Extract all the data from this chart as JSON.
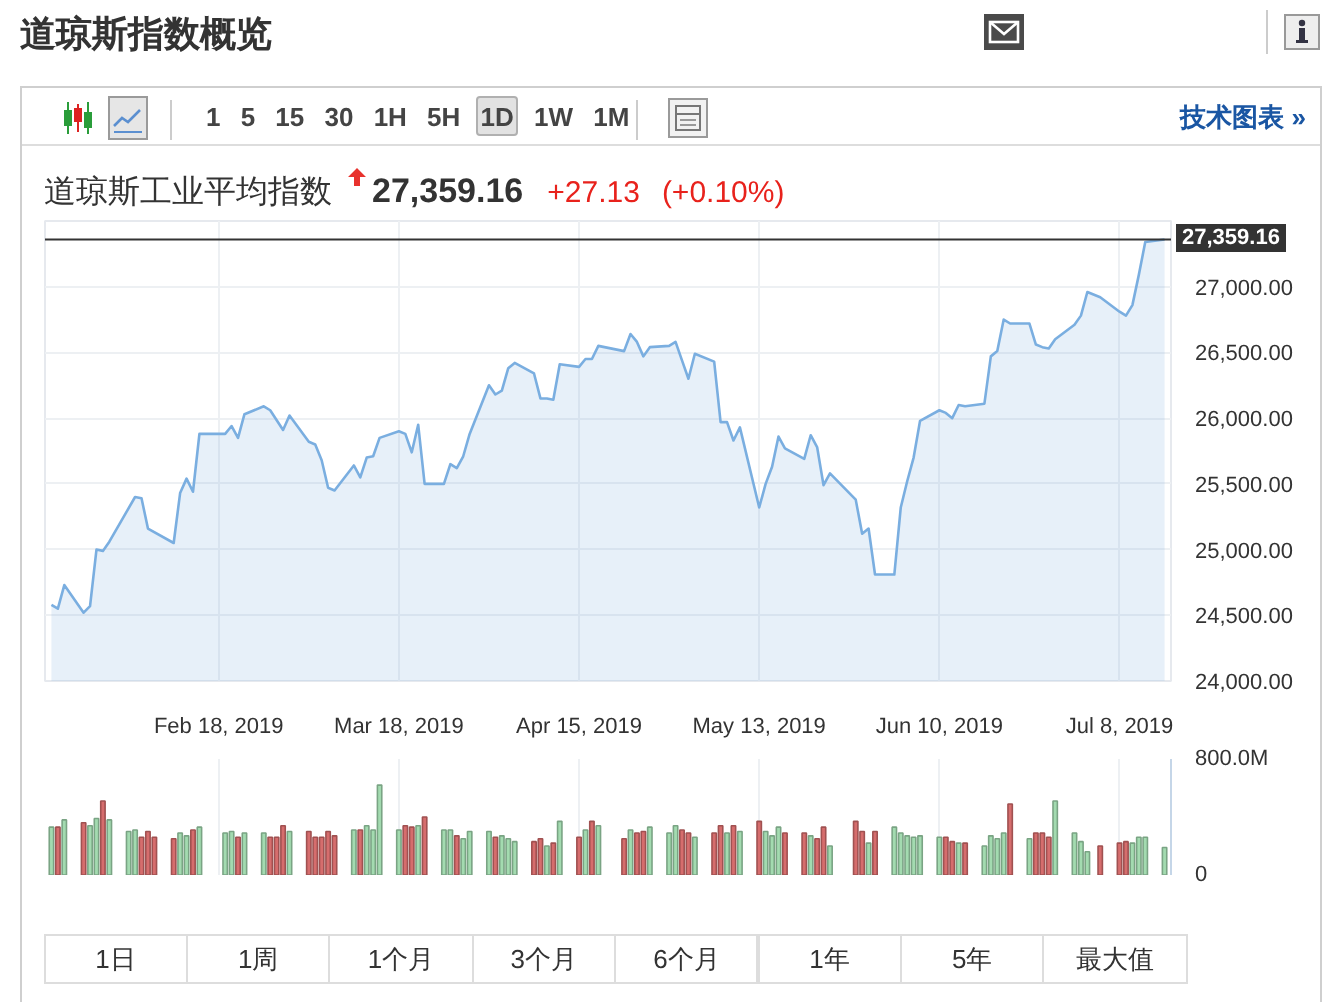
{
  "chart_data": [
    {
      "type": "area",
      "title": "道琼斯指数概览",
      "subtitle": "道琼斯工业平均指数",
      "annotations": [
        "27,359.16",
        "+27.13",
        "(+0.10%)",
        "1 5 15 30 1H 5H 1D 1W 1M",
        "技术图表 »"
      ],
      "color": "#7aaee0",
      "x": [
        "2019-01-23",
        "2019-01-24",
        "2019-01-25",
        "2019-01-28",
        "2019-01-29",
        "2019-01-30",
        "2019-01-31",
        "2019-02-01",
        "2019-02-05",
        "2019-02-06",
        "2019-02-07",
        "2019-02-11",
        "2019-02-12",
        "2019-02-13",
        "2019-02-14",
        "2019-02-15",
        "2019-02-19",
        "2019-02-20",
        "2019-02-21",
        "2019-02-22",
        "2019-02-25",
        "2019-02-26",
        "2019-02-28",
        "2019-03-01",
        "2019-03-04",
        "2019-03-05",
        "2019-03-06",
        "2019-03-07",
        "2019-03-08",
        "2019-03-11",
        "2019-03-12",
        "2019-03-13",
        "2019-03-14",
        "2019-03-15",
        "2019-03-18",
        "2019-03-19",
        "2019-03-20",
        "2019-03-21",
        "2019-03-22",
        "2019-03-25",
        "2019-03-26",
        "2019-03-27",
        "2019-03-28",
        "2019-03-29",
        "2019-04-01",
        "2019-04-02",
        "2019-04-03",
        "2019-04-04",
        "2019-04-05",
        "2019-04-08",
        "2019-04-09",
        "2019-04-10",
        "2019-04-11",
        "2019-04-12",
        "2019-04-15",
        "2019-04-16",
        "2019-04-17",
        "2019-04-18",
        "2019-04-22",
        "2019-04-23",
        "2019-04-24",
        "2019-04-25",
        "2019-04-26",
        "2019-04-29",
        "2019-04-30",
        "2019-05-01",
        "2019-05-02",
        "2019-05-03",
        "2019-05-06",
        "2019-05-07",
        "2019-05-08",
        "2019-05-09",
        "2019-05-10",
        "2019-05-13",
        "2019-05-14",
        "2019-05-15",
        "2019-05-16",
        "2019-05-17",
        "2019-05-20",
        "2019-05-21",
        "2019-05-22",
        "2019-05-23",
        "2019-05-24",
        "2019-05-28",
        "2019-05-29",
        "2019-05-30",
        "2019-05-31",
        "2019-06-03",
        "2019-06-04",
        "2019-06-05",
        "2019-06-06",
        "2019-06-07",
        "2019-06-10",
        "2019-06-11",
        "2019-06-12",
        "2019-06-13",
        "2019-06-14",
        "2019-06-17",
        "2019-06-18",
        "2019-06-19",
        "2019-06-20",
        "2019-06-21",
        "2019-06-24",
        "2019-06-25",
        "2019-06-26",
        "2019-06-27",
        "2019-06-28",
        "2019-07-01",
        "2019-07-02",
        "2019-07-03",
        "2019-07-05",
        "2019-07-08",
        "2019-07-09",
        "2019-07-10",
        "2019-07-11",
        "2019-07-12",
        "2019-07-15"
      ],
      "values": [
        24580,
        24550,
        24730,
        24520,
        24570,
        25000,
        24990,
        25060,
        25400,
        25390,
        25160,
        25050,
        25430,
        25540,
        25440,
        25880,
        25880,
        25940,
        25850,
        26030,
        26090,
        26060,
        25910,
        26020,
        25820,
        25800,
        25680,
        25470,
        25450,
        25640,
        25550,
        25700,
        25710,
        25850,
        25900,
        25880,
        25740,
        25950,
        25500,
        25500,
        25650,
        25620,
        25710,
        25880,
        26250,
        26180,
        26210,
        26380,
        26420,
        26340,
        26150,
        26150,
        26140,
        26410,
        26390,
        26450,
        26450,
        26550,
        26510,
        26640,
        26580,
        26470,
        26540,
        26550,
        26580,
        26440,
        26300,
        26490,
        26430,
        25970,
        25970,
        25830,
        25930,
        25320,
        25500,
        25630,
        25860,
        25770,
        25690,
        25870,
        25780,
        25490,
        25580,
        25380,
        25120,
        25160,
        24810,
        24810,
        25320,
        25520,
        25700,
        25980,
        26060,
        26040,
        26000,
        26100,
        26090,
        26110,
        26470,
        26510,
        26750,
        26720,
        26720,
        26560,
        26540,
        26530,
        26600,
        26710,
        26780,
        26960,
        26920,
        26810,
        26780,
        26860,
        27090,
        27340,
        27359.16
      ],
      "xlim": [
        "2019-01-22",
        "2019-07-16"
      ],
      "xticks": [
        {
          "value": "2019-02-18",
          "label": "Feb 18, 2019"
        },
        {
          "value": "2019-03-18",
          "label": "Mar 18, 2019"
        },
        {
          "value": "2019-04-15",
          "label": "Apr 15, 2019"
        },
        {
          "value": "2019-05-13",
          "label": "May 13, 2019"
        },
        {
          "value": "2019-06-10",
          "label": "Jun 10, 2019"
        },
        {
          "value": "2019-07-08",
          "label": "Jul 8, 2019"
        }
      ],
      "ylim": [
        24000,
        27500
      ],
      "yticks": [
        {
          "value": 24000,
          "label": "24,000.00"
        },
        {
          "value": 24500,
          "label": "24,500.00"
        },
        {
          "value": 25000,
          "label": "25,000.00"
        },
        {
          "value": 25500,
          "label": "25,500.00"
        },
        {
          "value": 26000,
          "label": "26,000.00"
        },
        {
          "value": 26500,
          "label": "26,500.00"
        },
        {
          "value": 27000,
          "label": "27,000.00"
        }
      ],
      "grid": true,
      "ref_lines": [
        {
          "axis": "y",
          "value": 27359.16,
          "label": "27,359.16",
          "color": "#333333"
        }
      ]
    },
    {
      "type": "bar",
      "annotations": [
        "1日",
        "1周",
        "1个月",
        "3个月",
        "6个月",
        "1年",
        "5年",
        "最大值"
      ],
      "x": [
        "2019-01-23",
        "2019-01-24",
        "2019-01-25",
        "2019-01-28",
        "2019-01-29",
        "2019-01-30",
        "2019-01-31",
        "2019-02-01",
        "2019-02-04",
        "2019-02-05",
        "2019-02-06",
        "2019-02-07",
        "2019-02-08",
        "2019-02-11",
        "2019-02-12",
        "2019-02-13",
        "2019-02-14",
        "2019-02-15",
        "2019-02-19",
        "2019-02-20",
        "2019-02-21",
        "2019-02-22",
        "2019-02-25",
        "2019-02-26",
        "2019-02-27",
        "2019-02-28",
        "2019-03-01",
        "2019-03-04",
        "2019-03-05",
        "2019-03-06",
        "2019-03-07",
        "2019-03-08",
        "2019-03-11",
        "2019-03-12",
        "2019-03-13",
        "2019-03-14",
        "2019-03-15",
        "2019-03-18",
        "2019-03-19",
        "2019-03-20",
        "2019-03-21",
        "2019-03-22",
        "2019-03-25",
        "2019-03-26",
        "2019-03-27",
        "2019-03-28",
        "2019-03-29",
        "2019-04-01",
        "2019-04-02",
        "2019-04-03",
        "2019-04-04",
        "2019-04-05",
        "2019-04-08",
        "2019-04-09",
        "2019-04-10",
        "2019-04-11",
        "2019-04-12",
        "2019-04-15",
        "2019-04-16",
        "2019-04-17",
        "2019-04-18",
        "2019-04-22",
        "2019-04-23",
        "2019-04-24",
        "2019-04-25",
        "2019-04-26",
        "2019-04-29",
        "2019-04-30",
        "2019-05-01",
        "2019-05-02",
        "2019-05-03",
        "2019-05-06",
        "2019-05-07",
        "2019-05-08",
        "2019-05-09",
        "2019-05-10",
        "2019-05-13",
        "2019-05-14",
        "2019-05-15",
        "2019-05-16",
        "2019-05-17",
        "2019-05-20",
        "2019-05-21",
        "2019-05-22",
        "2019-05-23",
        "2019-05-24",
        "2019-05-28",
        "2019-05-29",
        "2019-05-30",
        "2019-05-31",
        "2019-06-03",
        "2019-06-04",
        "2019-06-05",
        "2019-06-06",
        "2019-06-07",
        "2019-06-10",
        "2019-06-11",
        "2019-06-12",
        "2019-06-13",
        "2019-06-14",
        "2019-06-17",
        "2019-06-18",
        "2019-06-19",
        "2019-06-20",
        "2019-06-21",
        "2019-06-24",
        "2019-06-25",
        "2019-06-26",
        "2019-06-27",
        "2019-06-28",
        "2019-07-01",
        "2019-07-02",
        "2019-07-03",
        "2019-07-05",
        "2019-07-08",
        "2019-07-09",
        "2019-07-10",
        "2019-07-11",
        "2019-07-12",
        "2019-07-15"
      ],
      "values": [
        330,
        330,
        380,
        360,
        340,
        390,
        510,
        380,
        300,
        310,
        260,
        300,
        260,
        250,
        290,
        270,
        310,
        330,
        290,
        300,
        260,
        290,
        290,
        260,
        260,
        340,
        300,
        300,
        260,
        260,
        300,
        270,
        310,
        310,
        340,
        310,
        620,
        310,
        340,
        330,
        340,
        400,
        310,
        310,
        270,
        250,
        300,
        300,
        260,
        270,
        250,
        230,
        230,
        250,
        200,
        220,
        370,
        260,
        310,
        370,
        340,
        250,
        310,
        290,
        300,
        330,
        290,
        340,
        310,
        290,
        260,
        290,
        340,
        290,
        340,
        300,
        370,
        300,
        270,
        330,
        290,
        290,
        270,
        250,
        330,
        200,
        370,
        300,
        220,
        300,
        330,
        290,
        270,
        260,
        270,
        260,
        260,
        230,
        220,
        220,
        200,
        270,
        250,
        290,
        490,
        250,
        290,
        290,
        260,
        510,
        290,
        230,
        160,
        200,
        220,
        230,
        220,
        260,
        260,
        190
      ],
      "colors": [
        "#a3dbb0",
        "#d66d6d",
        "#a3dbb0",
        "#d66d6d",
        "#a3dbb0",
        "#a3dbb0",
        "#d66d6d",
        "#a3dbb0",
        "#a3dbb0",
        "#a3dbb0",
        "#d66d6d",
        "#d66d6d",
        "#d66d6d",
        "#d66d6d",
        "#a3dbb0",
        "#a3dbb0",
        "#d66d6d",
        "#a3dbb0",
        "#a3dbb0",
        "#a3dbb0",
        "#d66d6d",
        "#a3dbb0",
        "#a3dbb0",
        "#d66d6d",
        "#d66d6d",
        "#d66d6d",
        "#a3dbb0",
        "#d66d6d",
        "#d66d6d",
        "#d66d6d",
        "#d66d6d",
        "#d66d6d",
        "#a3dbb0",
        "#d66d6d",
        "#a3dbb0",
        "#a3dbb0",
        "#a3dbb0",
        "#a3dbb0",
        "#d66d6d",
        "#d66d6d",
        "#a3dbb0",
        "#d66d6d",
        "#a3dbb0",
        "#a3dbb0",
        "#d66d6d",
        "#a3dbb0",
        "#a3dbb0",
        "#a3dbb0",
        "#d66d6d",
        "#a3dbb0",
        "#a3dbb0",
        "#a3dbb0",
        "#d66d6d",
        "#d66d6d",
        "#a3dbb0",
        "#d66d6d",
        "#a3dbb0",
        "#d66d6d",
        "#a3dbb0",
        "#d66d6d",
        "#a3dbb0",
        "#d66d6d",
        "#a3dbb0",
        "#d66d6d",
        "#d66d6d",
        "#a3dbb0",
        "#a3dbb0",
        "#a3dbb0",
        "#d66d6d",
        "#d66d6d",
        "#a3dbb0",
        "#d66d6d",
        "#d66d6d",
        "#a3dbb0",
        "#d66d6d",
        "#a3dbb0",
        "#d66d6d",
        "#a3dbb0",
        "#a3dbb0",
        "#a3dbb0",
        "#d66d6d",
        "#d66d6d",
        "#a3dbb0",
        "#d66d6d",
        "#d66d6d",
        "#a3dbb0",
        "#d66d6d",
        "#d66d6d",
        "#a3dbb0",
        "#d66d6d",
        "#a3dbb0",
        "#a3dbb0",
        "#a3dbb0",
        "#a3dbb0",
        "#a3dbb0",
        "#a3dbb0",
        "#d66d6d",
        "#d66d6d",
        "#a3dbb0",
        "#d66d6d",
        "#a3dbb0",
        "#a3dbb0",
        "#a3dbb0",
        "#a3dbb0",
        "#d66d6d",
        "#a3dbb0",
        "#d66d6d",
        "#d66d6d",
        "#d66d6d",
        "#a3dbb0",
        "#a3dbb0",
        "#a3dbb0",
        "#a3dbb0",
        "#d66d6d",
        "#d66d6d",
        "#d66d6d",
        "#a3dbb0",
        "#a3dbb0",
        "#a3dbb0",
        "#a3dbb0"
      ],
      "xlim": [
        "2019-01-22",
        "2019-07-16"
      ],
      "xticks": [
        {
          "value": "2019-02-18",
          "label": null
        },
        {
          "value": "2019-03-18",
          "label": null
        },
        {
          "value": "2019-04-15",
          "label": null
        },
        {
          "value": "2019-05-13",
          "label": null
        },
        {
          "value": "2019-06-10",
          "label": null
        },
        {
          "value": "2019-07-08",
          "label": null
        }
      ],
      "ylim": [
        0,
        800
      ],
      "yticks": [
        0,
        {
          "value": 800,
          "label": "800.0M"
        }
      ],
      "grid": true,
      "tick_labels": "y"
    }
  ]
}
